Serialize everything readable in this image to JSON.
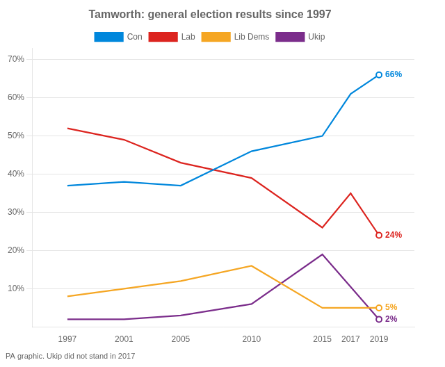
{
  "chart_data": {
    "type": "line",
    "title": "Tamworth: general election results since 1997",
    "subtitle": "PA graphic. Ukip did not stand in 2017",
    "x": [
      1997,
      2001,
      2005,
      2010,
      2015,
      2017,
      2019
    ],
    "series": [
      {
        "name": "Con",
        "color": "#0087dc",
        "values": [
          37,
          38,
          37,
          46,
          50,
          61,
          66
        ],
        "value_labels": [
          null,
          null,
          null,
          null,
          null,
          null,
          "66%"
        ]
      },
      {
        "name": "Lab",
        "color": "#dc241f",
        "values": [
          52,
          49,
          43,
          39,
          26,
          35,
          24
        ],
        "value_labels": [
          null,
          null,
          null,
          null,
          null,
          null,
          "24%"
        ]
      },
      {
        "name": "Lib Dems",
        "color": "#f5a623",
        "values": [
          8,
          10,
          12,
          16,
          5,
          5,
          5
        ],
        "value_labels": [
          null,
          null,
          null,
          null,
          null,
          null,
          "5%"
        ]
      },
      {
        "name": "Ukip",
        "color": "#7b2d8b",
        "values": [
          2,
          2,
          3,
          6,
          19,
          null,
          2
        ],
        "value_labels": [
          null,
          null,
          null,
          null,
          null,
          null,
          "2%"
        ]
      }
    ],
    "xlim": [
      1994.5,
      2021.5
    ],
    "xticks": [
      1997,
      2001,
      2005,
      2010,
      2015,
      2017,
      2019
    ],
    "ylim": [
      0,
      73
    ],
    "yticks": [
      {
        "value": 10,
        "label": "10%"
      },
      {
        "value": 20,
        "label": "20%"
      },
      {
        "value": 30,
        "label": "30%"
      },
      {
        "value": 40,
        "label": "40%"
      },
      {
        "value": 50,
        "label": "50%"
      },
      {
        "value": 60,
        "label": "60%"
      },
      {
        "value": 70,
        "label": "70%"
      }
    ],
    "grid": true,
    "legend": "top"
  }
}
